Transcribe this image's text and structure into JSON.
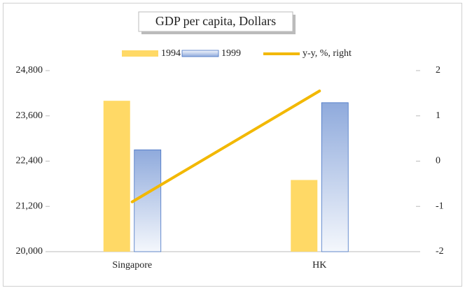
{
  "chart_data": {
    "type": "bar_line",
    "title": "GDP per capita, Dollars",
    "categories": [
      "Singapore",
      "HK"
    ],
    "series": [
      {
        "name": "1994",
        "color": "#ffd966",
        "values": [
          24000,
          21900
        ]
      },
      {
        "name": "1999",
        "color": "#8faadc",
        "values": [
          22700,
          23950
        ]
      },
      {
        "name": "y-y, %, right",
        "color": "#f2b800",
        "axis": "y2",
        "values": [
          -0.9,
          1.55
        ]
      }
    ],
    "ylim": [
      20000,
      24800
    ],
    "yticks": [
      {
        "value": 20000,
        "label": "20,000"
      },
      {
        "value": 21200,
        "label": "21,200"
      },
      {
        "value": 22400,
        "label": "22,400"
      },
      {
        "value": 23600,
        "label": "23,600"
      },
      {
        "value": 24800,
        "label": "24,800"
      }
    ],
    "y2lim": [
      -2,
      2
    ],
    "y2ticks": [
      -2,
      -1,
      0,
      1,
      2
    ],
    "legend": "top"
  }
}
